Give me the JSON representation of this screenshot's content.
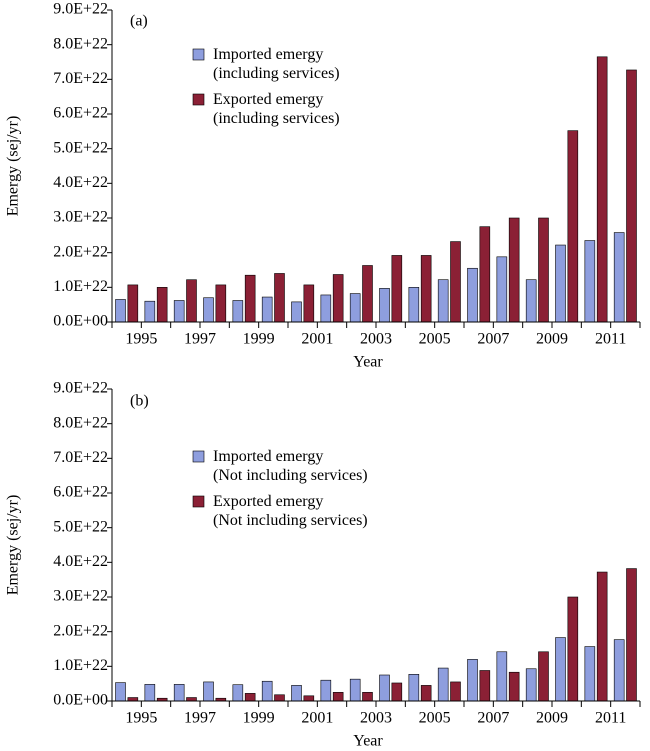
{
  "chart_data": [
    {
      "type": "bar",
      "label": "(a)",
      "xlabel": "Year",
      "ylabel": "Emergy (sej/yr)",
      "categories": [
        "1995",
        null,
        "1997",
        null,
        "1999",
        null,
        "2001",
        null,
        "2003",
        null,
        "2005",
        null,
        "2007",
        null,
        "2009",
        null,
        "2011",
        null
      ],
      "series": [
        {
          "name": "Imported emergy\n(including services)",
          "color": "#8e9ede",
          "values": [
            6.5e+21,
            6e+21,
            6.2e+21,
            7e+21,
            6.2e+21,
            7.2e+21,
            5.8e+21,
            7.8e+21,
            8.2e+21,
            9.7e+21,
            1e+22,
            1.22e+22,
            1.55e+22,
            1.88e+22,
            1.22e+22,
            2.22e+22,
            2.35e+22,
            2.58e+22
          ]
        },
        {
          "name": "Exported emergy\n(including services)",
          "color": "#8b2035",
          "values": [
            1.07e+22,
            1e+22,
            1.22e+22,
            1.07e+22,
            1.35e+22,
            1.4e+22,
            1.07e+22,
            1.37e+22,
            1.63e+22,
            1.92e+22,
            1.92e+22,
            2.32e+22,
            2.75e+22,
            3e+22,
            3e+22,
            5.52e+22,
            7.65e+22,
            7.27e+22
          ]
        }
      ],
      "ylim": [
        0,
        9e+22
      ],
      "yticks": [
        {
          "value": 0,
          "label": "0.0E+00"
        },
        {
          "value": 1e+22,
          "label": "1.0E+22"
        },
        {
          "value": 2e+22,
          "label": "2.0E+22"
        },
        {
          "value": 3e+22,
          "label": "3.0E+22"
        },
        {
          "value": 4e+22,
          "label": "4.0E+22"
        },
        {
          "value": 5e+22,
          "label": "5.0E+22"
        },
        {
          "value": 6e+22,
          "label": "6.0E+22"
        },
        {
          "value": 7e+22,
          "label": "7.0E+22"
        },
        {
          "value": 8e+22,
          "label": "8.0E+22"
        },
        {
          "value": 9e+22,
          "label": "9.0E+22"
        }
      ]
    },
    {
      "type": "bar",
      "label": "(b)",
      "xlabel": "Year",
      "ylabel": "Emergy (sej/yr)",
      "categories": [
        "1995",
        null,
        "1997",
        null,
        "1999",
        null,
        "2001",
        null,
        "2003",
        null,
        "2005",
        null,
        "2007",
        null,
        "2009",
        null,
        "2011",
        null
      ],
      "series": [
        {
          "name": "Imported emergy\n(Not including services)",
          "color": "#8e9ede",
          "values": [
            5.3e+21,
            4.8e+21,
            4.8e+21,
            5.5e+21,
            4.7e+21,
            5.7e+21,
            4.5e+21,
            6e+21,
            6.3e+21,
            7.5e+21,
            7.7e+21,
            9.5e+21,
            1.2e+22,
            1.42e+22,
            9.3e+21,
            1.83e+22,
            1.57e+22,
            1.77e+22
          ]
        },
        {
          "name": "Exported emergy\n(Not including services)",
          "color": "#8b2035",
          "values": [
            1e+21,
            8e+20,
            1e+21,
            8e+20,
            2.2e+21,
            1.8e+21,
            1.5e+21,
            2.5e+21,
            2.5e+21,
            5.2e+21,
            4.5e+21,
            5.5e+21,
            8.8e+21,
            8.3e+21,
            1.42e+22,
            3e+22,
            3.72e+22,
            3.82e+22
          ]
        }
      ],
      "ylim": [
        0,
        9e+22
      ],
      "yticks": [
        {
          "value": 0,
          "label": "0.0E+00"
        },
        {
          "value": 1e+22,
          "label": "1.0E+22"
        },
        {
          "value": 2e+22,
          "label": "2.0E+22"
        },
        {
          "value": 3e+22,
          "label": "3.0E+22"
        },
        {
          "value": 4e+22,
          "label": "4.0E+22"
        },
        {
          "value": 5e+22,
          "label": "5.0E+22"
        },
        {
          "value": 6e+22,
          "label": "6.0E+22"
        },
        {
          "value": 7e+22,
          "label": "7.0E+22"
        },
        {
          "value": 8e+22,
          "label": "8.0E+22"
        },
        {
          "value": 9e+22,
          "label": "9.0E+22"
        }
      ]
    }
  ]
}
